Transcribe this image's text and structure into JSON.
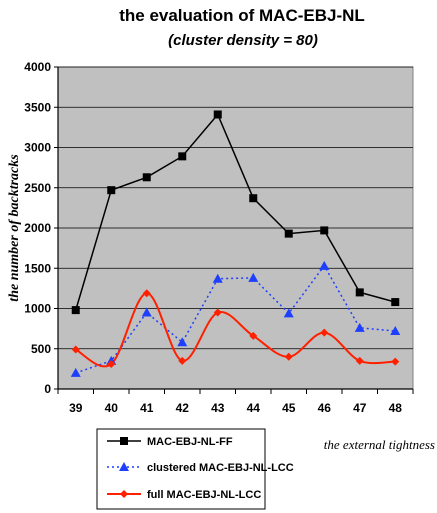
{
  "chart_data": {
    "type": "line",
    "title": "the evaluation of MAC-EBJ-NL",
    "subtitle": "(cluster density = 80)",
    "xlabel": "the external tightness",
    "ylabel": "the number of backtracks",
    "x": [
      39,
      40,
      41,
      42,
      43,
      44,
      45,
      46,
      47,
      48
    ],
    "ylim": [
      0,
      4000
    ],
    "yticks": [
      0,
      500,
      1000,
      1500,
      2000,
      2500,
      3000,
      3500,
      4000
    ],
    "grid": true,
    "legend_position": "bottom-left",
    "plot_background": "#c0c0c0",
    "series": [
      {
        "name": "MAC-EBJ-NL-FF",
        "color": "#000000",
        "marker": "square",
        "line": "solid",
        "values": [
          980,
          2470,
          2630,
          2890,
          3410,
          2370,
          1930,
          1970,
          1200,
          1080
        ]
      },
      {
        "name": "clustered MAC-EBJ-NL-LCC",
        "color": "#1f3fff",
        "marker": "triangle",
        "line": "dotted",
        "values": [
          200,
          350,
          950,
          580,
          1370,
          1380,
          940,
          1530,
          760,
          720
        ]
      },
      {
        "name": "full  MAC-EBJ-NL-LCC",
        "color": "#ff2000",
        "marker": "diamond",
        "line": "smooth",
        "values": [
          490,
          310,
          1190,
          350,
          950,
          660,
          400,
          700,
          350,
          340
        ]
      }
    ]
  }
}
